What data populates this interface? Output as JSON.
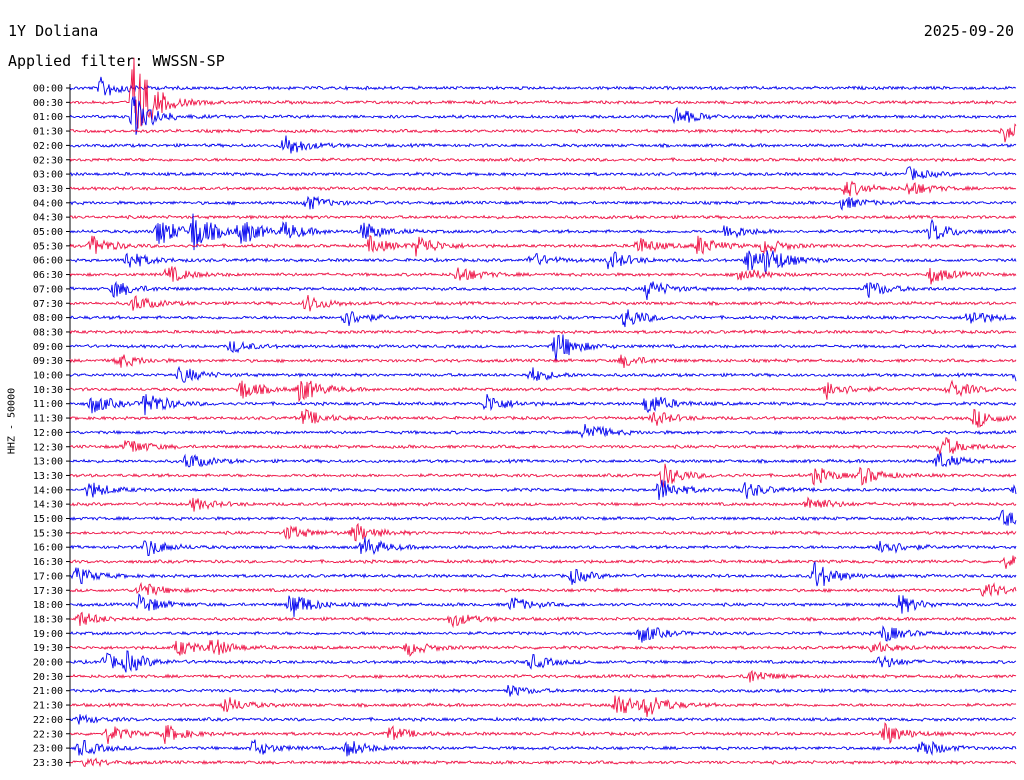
{
  "header": {
    "station": "1Y Doliana",
    "date": "2025-09-20",
    "filter": "Applied filter: WWSSN-SP"
  },
  "channel_label": "HHZ - 50000",
  "colors": {
    "even_rows": "#0000ee",
    "odd_rows": "#ee1144",
    "axis": "#000000"
  },
  "chart_data": {
    "type": "line",
    "title": "1Y Doliana",
    "subtitle": "Applied filter: WWSSN-SP",
    "ylabel": "HHZ - 50000",
    "xlabel": "",
    "grid": false,
    "legend": "none",
    "row_labels": [
      "00:00",
      "00:30",
      "01:00",
      "01:30",
      "02:00",
      "02:30",
      "03:00",
      "03:30",
      "04:00",
      "04:30",
      "05:00",
      "05:30",
      "06:00",
      "06:30",
      "07:00",
      "07:30",
      "08:00",
      "08:30",
      "09:00",
      "09:30",
      "10:00",
      "10:30",
      "11:00",
      "11:30",
      "12:00",
      "12:30",
      "13:00",
      "13:30",
      "14:00",
      "14:30",
      "15:00",
      "15:30",
      "16:00",
      "16:30",
      "17:00",
      "17:30",
      "18:00",
      "18:30",
      "19:00",
      "19:30",
      "20:00",
      "20:30",
      "21:00",
      "21:30",
      "22:00",
      "22:30",
      "23:00",
      "23:30"
    ],
    "row_minutes": 30,
    "events": [
      {
        "row": 0,
        "minute": 1.0,
        "amp": 1.0
      },
      {
        "row": 1,
        "minute": 2.0,
        "amp": 4.5
      },
      {
        "row": 2,
        "minute": 2.0,
        "amp": 2.0
      },
      {
        "row": 2,
        "minute": 19.2,
        "amp": 0.9
      },
      {
        "row": 3,
        "minute": 29.6,
        "amp": 1.0
      },
      {
        "row": 4,
        "minute": 6.8,
        "amp": 1.1
      },
      {
        "row": 6,
        "minute": 26.6,
        "amp": 0.6
      },
      {
        "row": 7,
        "minute": 24.6,
        "amp": 0.8
      },
      {
        "row": 7,
        "minute": 26.6,
        "amp": 0.7
      },
      {
        "row": 8,
        "minute": 7.5,
        "amp": 0.7
      },
      {
        "row": 8,
        "minute": 24.5,
        "amp": 0.6
      },
      {
        "row": 10,
        "minute": 2.8,
        "amp": 1.4
      },
      {
        "row": 10,
        "minute": 3.9,
        "amp": 1.8
      },
      {
        "row": 10,
        "minute": 5.4,
        "amp": 1.2
      },
      {
        "row": 10,
        "minute": 6.8,
        "amp": 0.8
      },
      {
        "row": 10,
        "minute": 9.3,
        "amp": 0.9
      },
      {
        "row": 10,
        "minute": 20.8,
        "amp": 0.8
      },
      {
        "row": 10,
        "minute": 27.3,
        "amp": 1.0
      },
      {
        "row": 11,
        "minute": 0.7,
        "amp": 0.9
      },
      {
        "row": 11,
        "minute": 9.5,
        "amp": 0.8
      },
      {
        "row": 11,
        "minute": 11.0,
        "amp": 1.0
      },
      {
        "row": 11,
        "minute": 18.0,
        "amp": 0.8
      },
      {
        "row": 11,
        "minute": 19.9,
        "amp": 0.9
      },
      {
        "row": 11,
        "minute": 22.0,
        "amp": 0.7
      },
      {
        "row": 12,
        "minute": 1.8,
        "amp": 0.9
      },
      {
        "row": 12,
        "minute": 14.6,
        "amp": 0.7
      },
      {
        "row": 12,
        "minute": 17.1,
        "amp": 0.9
      },
      {
        "row": 12,
        "minute": 21.5,
        "amp": 1.2
      },
      {
        "row": 12,
        "minute": 22.1,
        "amp": 1.0
      },
      {
        "row": 13,
        "minute": 3.1,
        "amp": 0.8
      },
      {
        "row": 13,
        "minute": 12.3,
        "amp": 0.8
      },
      {
        "row": 13,
        "minute": 21.2,
        "amp": 0.8
      },
      {
        "row": 13,
        "minute": 27.3,
        "amp": 0.8
      },
      {
        "row": 14,
        "minute": 1.4,
        "amp": 0.8
      },
      {
        "row": 14,
        "minute": 18.3,
        "amp": 0.9
      },
      {
        "row": 14,
        "minute": 25.3,
        "amp": 0.8
      },
      {
        "row": 15,
        "minute": 2.0,
        "amp": 0.8
      },
      {
        "row": 15,
        "minute": 7.5,
        "amp": 0.8
      },
      {
        "row": 16,
        "minute": 8.7,
        "amp": 0.9
      },
      {
        "row": 16,
        "minute": 17.6,
        "amp": 1.0
      },
      {
        "row": 16,
        "minute": 28.5,
        "amp": 0.8
      },
      {
        "row": 18,
        "minute": 15.4,
        "amp": 1.5
      },
      {
        "row": 18,
        "minute": 5.1,
        "amp": 0.6
      },
      {
        "row": 19,
        "minute": 1.5,
        "amp": 0.7
      },
      {
        "row": 19,
        "minute": 17.5,
        "amp": 0.6
      },
      {
        "row": 20,
        "minute": 3.5,
        "amp": 0.8
      },
      {
        "row": 20,
        "minute": 14.6,
        "amp": 0.7
      },
      {
        "row": 20,
        "minute": 30.0,
        "amp": 0.7
      },
      {
        "row": 21,
        "minute": 5.4,
        "amp": 1.0
      },
      {
        "row": 21,
        "minute": 7.3,
        "amp": 1.2
      },
      {
        "row": 21,
        "minute": 24.0,
        "amp": 0.9
      },
      {
        "row": 21,
        "minute": 27.9,
        "amp": 0.9
      },
      {
        "row": 22,
        "minute": 0.7,
        "amp": 0.9
      },
      {
        "row": 22,
        "minute": 2.4,
        "amp": 1.2
      },
      {
        "row": 22,
        "minute": 13.2,
        "amp": 0.9
      },
      {
        "row": 22,
        "minute": 18.3,
        "amp": 1.1
      },
      {
        "row": 23,
        "minute": 7.4,
        "amp": 0.8
      },
      {
        "row": 23,
        "minute": 18.5,
        "amp": 0.7
      },
      {
        "row": 23,
        "minute": 28.7,
        "amp": 0.9
      },
      {
        "row": 24,
        "minute": 16.3,
        "amp": 1.0
      },
      {
        "row": 25,
        "minute": 1.8,
        "amp": 0.8
      },
      {
        "row": 25,
        "minute": 27.6,
        "amp": 1.1
      },
      {
        "row": 26,
        "minute": 3.7,
        "amp": 0.8
      },
      {
        "row": 26,
        "minute": 27.5,
        "amp": 0.8
      },
      {
        "row": 27,
        "minute": 18.8,
        "amp": 1.1
      },
      {
        "row": 27,
        "minute": 23.6,
        "amp": 0.8
      },
      {
        "row": 27,
        "minute": 25.1,
        "amp": 0.8
      },
      {
        "row": 28,
        "minute": 0.6,
        "amp": 0.8
      },
      {
        "row": 28,
        "minute": 18.7,
        "amp": 1.1
      },
      {
        "row": 28,
        "minute": 21.4,
        "amp": 0.8
      },
      {
        "row": 28,
        "minute": 30.0,
        "amp": 0.8
      },
      {
        "row": 29,
        "minute": 3.9,
        "amp": 0.6
      },
      {
        "row": 29,
        "minute": 23.4,
        "amp": 0.8
      },
      {
        "row": 30,
        "minute": 29.6,
        "amp": 0.8
      },
      {
        "row": 31,
        "minute": 6.9,
        "amp": 0.7
      },
      {
        "row": 31,
        "minute": 9.0,
        "amp": 0.9
      },
      {
        "row": 32,
        "minute": 2.4,
        "amp": 0.9
      },
      {
        "row": 32,
        "minute": 9.3,
        "amp": 1.0
      },
      {
        "row": 32,
        "minute": 25.7,
        "amp": 0.9
      },
      {
        "row": 33,
        "minute": 29.7,
        "amp": 0.6
      },
      {
        "row": 34,
        "minute": 0.2,
        "amp": 0.8
      },
      {
        "row": 34,
        "minute": 15.9,
        "amp": 0.7
      },
      {
        "row": 34,
        "minute": 23.6,
        "amp": 1.4
      },
      {
        "row": 35,
        "minute": 2.2,
        "amp": 0.8
      },
      {
        "row": 35,
        "minute": 29.0,
        "amp": 0.8
      },
      {
        "row": 36,
        "minute": 2.2,
        "amp": 1.0
      },
      {
        "row": 36,
        "minute": 7.0,
        "amp": 1.3
      },
      {
        "row": 36,
        "minute": 14.0,
        "amp": 0.7
      },
      {
        "row": 36,
        "minute": 26.3,
        "amp": 0.9
      },
      {
        "row": 37,
        "minute": 0.3,
        "amp": 0.7
      },
      {
        "row": 37,
        "minute": 12.1,
        "amp": 0.7
      },
      {
        "row": 38,
        "minute": 18.1,
        "amp": 0.9
      },
      {
        "row": 38,
        "minute": 25.8,
        "amp": 0.8
      },
      {
        "row": 39,
        "minute": 3.4,
        "amp": 0.8
      },
      {
        "row": 39,
        "minute": 4.5,
        "amp": 0.8
      },
      {
        "row": 39,
        "minute": 10.7,
        "amp": 0.7
      },
      {
        "row": 39,
        "minute": 25.4,
        "amp": 0.6
      },
      {
        "row": 40,
        "minute": 1.1,
        "amp": 0.8
      },
      {
        "row": 40,
        "minute": 1.8,
        "amp": 0.8
      },
      {
        "row": 40,
        "minute": 14.6,
        "amp": 0.7
      },
      {
        "row": 40,
        "minute": 25.7,
        "amp": 0.6
      },
      {
        "row": 41,
        "minute": 21.5,
        "amp": 0.7
      },
      {
        "row": 42,
        "minute": 13.9,
        "amp": 0.5
      },
      {
        "row": 43,
        "minute": 4.9,
        "amp": 0.8
      },
      {
        "row": 43,
        "minute": 17.3,
        "amp": 1.2
      },
      {
        "row": 43,
        "minute": 18.3,
        "amp": 1.0
      },
      {
        "row": 44,
        "minute": 0.3,
        "amp": 0.4
      },
      {
        "row": 45,
        "minute": 1.2,
        "amp": 0.8
      },
      {
        "row": 45,
        "minute": 3.0,
        "amp": 0.8
      },
      {
        "row": 45,
        "minute": 10.1,
        "amp": 0.7
      },
      {
        "row": 45,
        "minute": 25.8,
        "amp": 1.1
      },
      {
        "row": 46,
        "minute": 0.3,
        "amp": 0.8
      },
      {
        "row": 46,
        "minute": 5.8,
        "amp": 0.8
      },
      {
        "row": 46,
        "minute": 8.8,
        "amp": 0.8
      },
      {
        "row": 46,
        "minute": 27.0,
        "amp": 0.9
      },
      {
        "row": 47,
        "minute": 0.5,
        "amp": 0.4
      }
    ]
  }
}
